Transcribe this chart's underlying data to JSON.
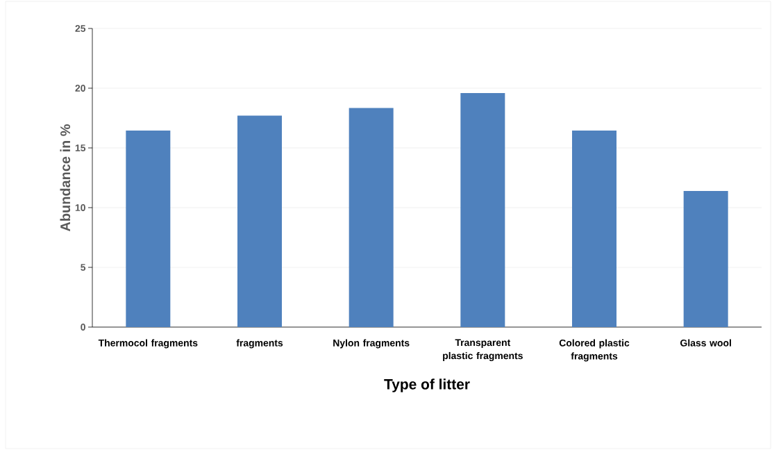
{
  "chart_data": {
    "type": "bar",
    "xlabel": "Type of litter",
    "ylabel": "Abundance in %",
    "categories": [
      "Thermocol fragments",
      "fragments",
      "Nylon fragments",
      "Transparent plastic fragments",
      "Colored plastic fragments",
      "Glass wool"
    ],
    "values": [
      16.45,
      17.7,
      18.35,
      19.6,
      16.45,
      11.4
    ],
    "color": "#4f81bd",
    "ylim": [
      0,
      25
    ],
    "yticks": [
      0,
      5,
      10,
      15,
      20,
      25
    ],
    "grid": "y"
  }
}
